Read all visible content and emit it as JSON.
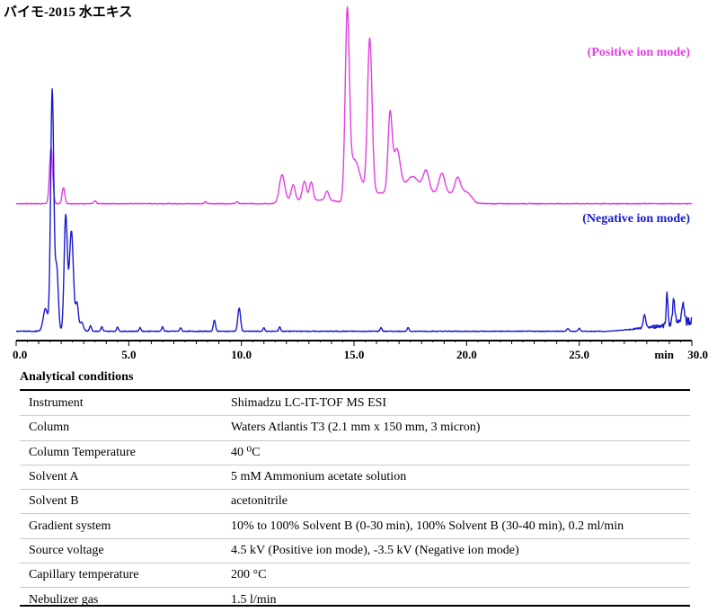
{
  "chart_data": {
    "type": "line",
    "title": "バイモ-2015 水エキス",
    "xlabel": "min",
    "xlim": [
      0.0,
      30.0
    ],
    "ticks": [
      "0.0",
      "5.0",
      "10.0",
      "15.0",
      "20.0",
      "25.0",
      "30.0"
    ],
    "ylabel": "",
    "series": [
      {
        "name": "(Positive ion mode)",
        "color": "#e040e0",
        "baseline": 0,
        "peaks": [
          [
            1.55,
            62,
            0.07
          ],
          [
            2.1,
            18,
            0.06
          ],
          [
            3.5,
            3,
            0.05
          ],
          [
            8.4,
            2,
            0.05
          ],
          [
            9.8,
            2,
            0.05
          ],
          [
            11.8,
            30,
            0.12
          ],
          [
            12.3,
            17,
            0.09
          ],
          [
            12.8,
            21,
            0.09
          ],
          [
            13.1,
            20,
            0.08
          ],
          [
            13.8,
            10,
            0.08
          ],
          [
            14.7,
            194,
            0.09
          ],
          [
            15.0,
            40,
            0.25
          ],
          [
            15.7,
            172,
            0.1
          ],
          [
            16.6,
            85,
            0.09
          ],
          [
            16.9,
            48,
            0.15
          ],
          [
            17.6,
            18,
            0.3
          ],
          [
            18.2,
            23,
            0.13
          ],
          [
            18.9,
            22,
            0.13
          ],
          [
            19.6,
            18,
            0.12
          ],
          [
            20.0,
            6,
            0.25
          ]
        ],
        "plateaus": [
          [
            11.65,
            14.4,
            4
          ],
          [
            14.4,
            20.4,
            12
          ]
        ]
      },
      {
        "name": "(Negative ion mode)",
        "color": "#1a1acc",
        "baseline": 0,
        "peaks": [
          [
            1.3,
            25,
            0.1
          ],
          [
            1.6,
            268,
            0.07
          ],
          [
            1.8,
            70,
            0.07
          ],
          [
            2.2,
            128,
            0.07
          ],
          [
            2.45,
            112,
            0.09
          ],
          [
            2.7,
            30,
            0.06
          ],
          [
            2.9,
            10,
            0.08
          ],
          [
            3.3,
            6,
            0.05
          ],
          [
            3.8,
            5,
            0.04
          ],
          [
            4.5,
            5,
            0.04
          ],
          [
            5.5,
            4,
            0.04
          ],
          [
            6.5,
            5,
            0.04
          ],
          [
            7.3,
            4,
            0.04
          ],
          [
            8.8,
            12,
            0.05
          ],
          [
            9.9,
            26,
            0.06
          ],
          [
            11.0,
            4,
            0.04
          ],
          [
            11.7,
            5,
            0.04
          ],
          [
            16.2,
            4,
            0.04
          ],
          [
            17.4,
            4,
            0.04
          ],
          [
            24.5,
            3,
            0.05
          ],
          [
            25.0,
            3,
            0.05
          ],
          [
            27.9,
            15,
            0.05
          ],
          [
            28.9,
            35,
            0.04
          ],
          [
            29.2,
            28,
            0.05
          ],
          [
            29.6,
            24,
            0.05
          ]
        ],
        "noise_region": [
          26.0,
          30.0
        ]
      }
    ],
    "grid": false,
    "legend": "labels placed top-right beside each trace"
  },
  "conditions": {
    "header": "Analytical conditions",
    "rows": [
      {
        "label": "Instrument",
        "value": "Shimadzu LC-IT-TOF MS ESI"
      },
      {
        "label": "Column",
        "value": "Waters Atlantis T3 (2.1 mm x 150 mm, 3 micron)"
      },
      {
        "label": "Column Temperature",
        "value": "40 ⁰C"
      },
      {
        "label": "Solvent A",
        "value": "5 mM Ammonium acetate solution"
      },
      {
        "label": "Solvent B",
        "value": "acetonitrile"
      },
      {
        "label": "Gradient system",
        "value": "10% to 100% Solvent B (0-30 min), 100% Solvent B (30-40 min), 0.2 ml/min"
      },
      {
        "label": "Source voltage",
        "value": "4.5 kV (Positive ion mode), -3.5 kV (Negative ion mode)"
      },
      {
        "label": "Capillary temperature",
        "value": "200 °C"
      },
      {
        "label": "Nebulizer gas",
        "value": "1.5 l/min"
      }
    ]
  }
}
